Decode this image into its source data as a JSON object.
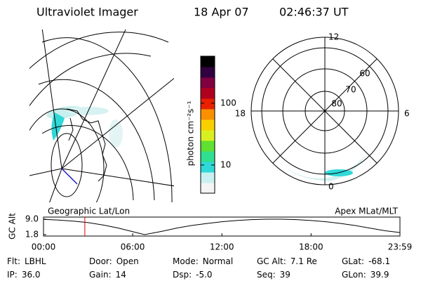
{
  "header": {
    "title": "Ultraviolet Imager",
    "date": "18 Apr 07",
    "time": "02:46:37 UT"
  },
  "map_label": "Geographic Lat/Lon",
  "polar": {
    "label": "Apex MLat/MLT",
    "mlt_labels": [
      "12",
      "6",
      "0",
      "18"
    ],
    "mlat_labels": [
      "80",
      "70",
      "60"
    ]
  },
  "colorbar": {
    "label": "photon cm⁻²s⁻¹",
    "scale": "log",
    "lim": [
      3.5,
      575
    ],
    "ticks": [
      10,
      100
    ],
    "colors": [
      "#f4f4f4",
      "#c8f0f0",
      "#30d8d8",
      "#30e090",
      "#60e030",
      "#d8f020",
      "#f8d000",
      "#f89000",
      "#e82000",
      "#b00020",
      "#800040",
      "#300040",
      "#000000"
    ]
  },
  "chart_data": {
    "type": "line",
    "ylabel": "GC Alt",
    "x": [
      0,
      1,
      2,
      3,
      4,
      5,
      6,
      6.8,
      8,
      9,
      10,
      11,
      12,
      13,
      14,
      15,
      16,
      17,
      18,
      19,
      20,
      21,
      22,
      23,
      23.98
    ],
    "series": [
      {
        "color": "#000000",
        "values": [
          8.9,
          8.6,
          8.1,
          7.4,
          6.3,
          4.9,
          3.2,
          1.8,
          3.4,
          4.9,
          6.1,
          7.0,
          7.8,
          8.4,
          8.8,
          9.0,
          9.0,
          8.8,
          8.4,
          7.8,
          7.0,
          6.0,
          4.8,
          3.6,
          2.8
        ]
      }
    ],
    "xlim": [
      0,
      23.98
    ],
    "xticks": [
      {
        "value": 0,
        "label": "00:00"
      },
      {
        "value": 6,
        "label": "06:00"
      },
      {
        "value": 12,
        "label": "12:00"
      },
      {
        "value": 18,
        "label": "18:00"
      },
      {
        "value": 23.98,
        "label": "23:59"
      }
    ],
    "ylim": [
      1.8,
      9.0
    ],
    "yticks": [
      {
        "value": 9.0,
        "label": "9.0"
      },
      1.8
    ],
    "marker_x": 2.78,
    "marker_color": "#e00000"
  },
  "info": [
    [
      {
        "label": "Flt:",
        "value": "LBHL"
      },
      {
        "label": "Door:",
        "value": "Open"
      },
      {
        "label": "Mode:",
        "value": "Normal"
      },
      {
        "label": "GC Alt:",
        "value": "7.1 Re"
      },
      {
        "label": "GLat:",
        "value": "-68.1"
      }
    ],
    [
      {
        "label": "IP:",
        "value": "36.0"
      },
      {
        "label": "Gain:",
        "value": "14"
      },
      {
        "label": "Dsp:",
        "value": "-5.0"
      },
      {
        "label": "Seq:",
        "value": "39"
      },
      {
        "label": "GLon:",
        "value": "39.9"
      }
    ]
  ]
}
